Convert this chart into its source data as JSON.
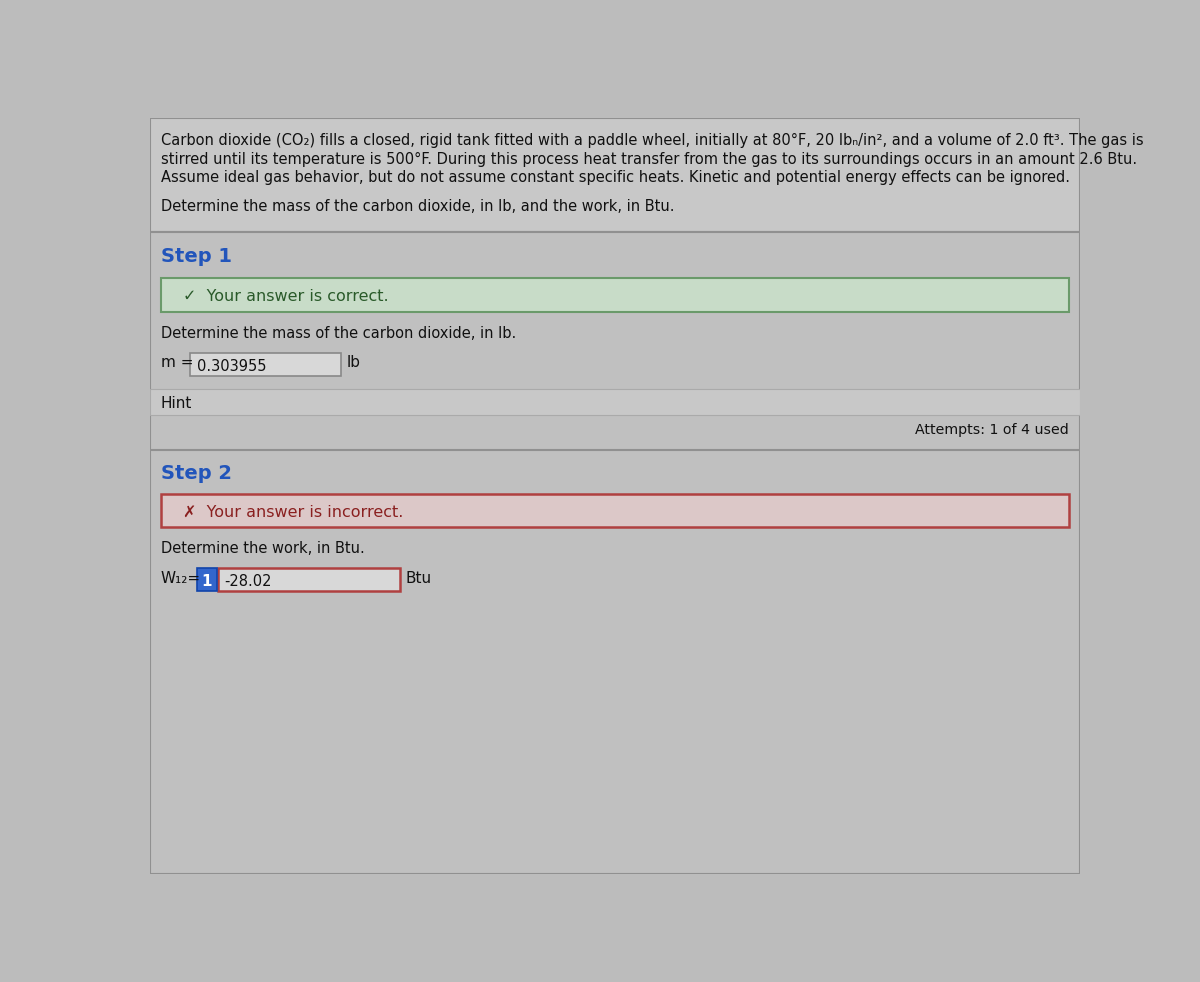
{
  "bg_color": "#bcbcbc",
  "panel_bg": "#c8c8c8",
  "section_bg": "#c0c0c0",
  "title_text_lines": [
    "Carbon dioxide (CO₂) fills a closed, rigid tank fitted with a paddle wheel, initially at 80°F, 20 lbₙ/in², and a volume of 2.0 ft³. The gas is",
    "stirred until its temperature is 500°F. During this process heat transfer from the gas to its surroundings occurs in an amount 2.6 Btu.",
    "Assume ideal gas behavior, but do not assume constant specific heats. Kinetic and potential energy effects can be ignored."
  ],
  "subtitle": "Determine the mass of the carbon dioxide, in lb, and the work, in Btu.",
  "step1_label": "Step 1",
  "step1_correct_text": "✓  Your answer is correct.",
  "step1_correct_bg": "#c8dcc8",
  "step1_correct_border": "#6a9a6a",
  "step1_question": "Determine the mass of the carbon dioxide, in lb.",
  "step1_var": "m =",
  "step1_value": "0.303955",
  "step1_unit": "lb",
  "step1_hint": "Hint",
  "step1_attempts": "Attempts: 1 of 4 used",
  "step2_label": "Step 2",
  "step2_incorrect_text": "✗  Your answer is incorrect.",
  "step2_incorrect_bg": "#dcc8c8",
  "step2_incorrect_border": "#b04040",
  "step2_question": "Determine the work, in Btu.",
  "step2_var": "W₁₂=",
  "step2_blue_box": "1",
  "step2_value": "-28.02",
  "step2_unit": "Btu",
  "outer_border_color": "#909090",
  "inner_border_color": "#aaaaaa",
  "text_color": "#111111",
  "step_color": "#2255bb",
  "input_box_bg": "#d8d8d8",
  "input_border": "#888888",
  "incorrect_input_border": "#b04040",
  "blue_box_bg": "#3366cc",
  "blue_box_border": "#1144aa",
  "hint_bg": "#c8c8c8",
  "hint_border": "#909090"
}
